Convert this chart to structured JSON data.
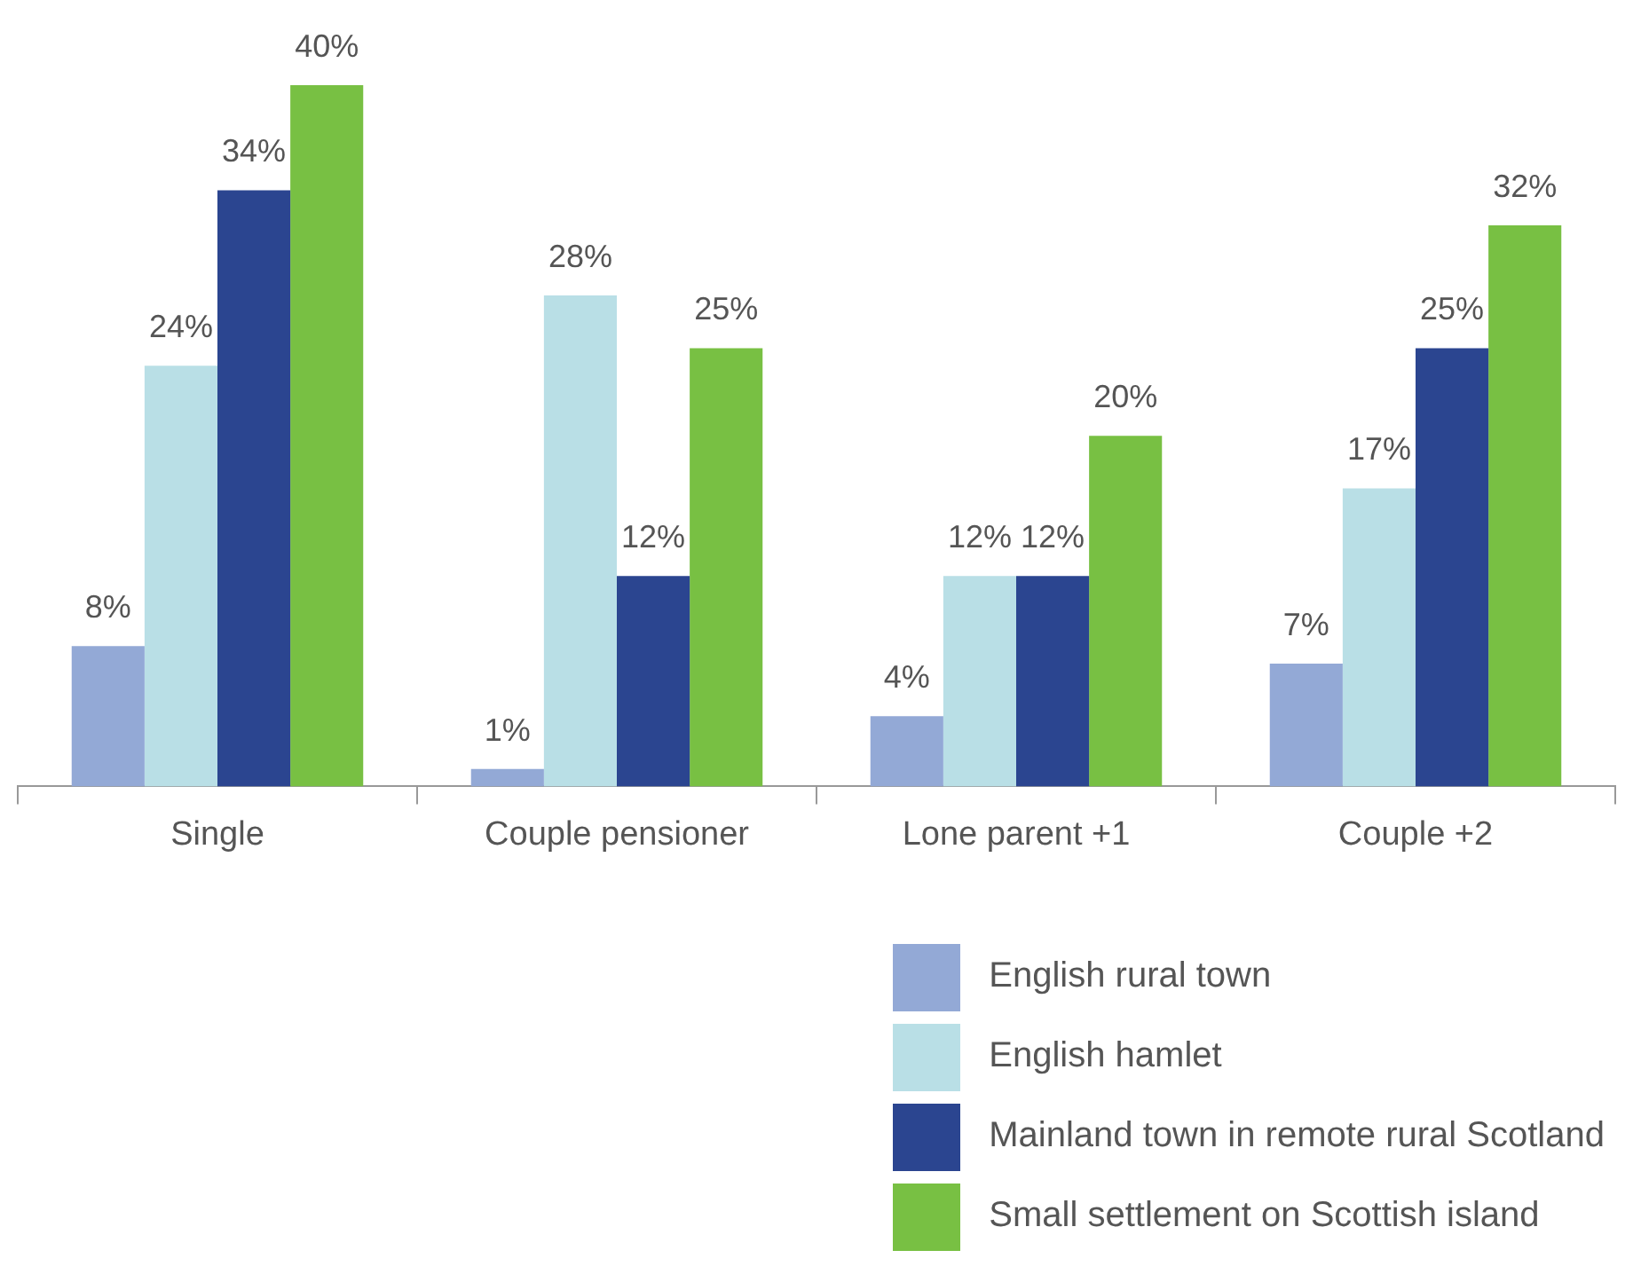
{
  "chart_data": {
    "type": "bar",
    "categories": [
      "Single",
      "Couple pensioner",
      "Lone parent +1",
      "Couple +2"
    ],
    "series": [
      {
        "name": "English rural town",
        "color": "#93a9d6",
        "values": [
          8,
          1,
          4,
          7
        ],
        "value_labels": [
          "8%",
          "1%",
          "4%",
          "7%"
        ]
      },
      {
        "name": "English hamlet",
        "color": "#b9dfe6",
        "values": [
          24,
          28,
          12,
          17
        ],
        "value_labels": [
          "24%",
          "28%",
          "12%",
          "17%"
        ]
      },
      {
        "name": "Mainland town in remote rural Scotland",
        "color": "#2b4590",
        "values": [
          34,
          12,
          12,
          25
        ],
        "value_labels": [
          "34%",
          "12%",
          "12%",
          "25%"
        ]
      },
      {
        "name": "Small settlement on Scottish island",
        "color": "#78c043",
        "values": [
          40,
          25,
          20,
          32
        ],
        "value_labels": [
          "40%",
          "25%",
          "20%",
          "32%"
        ]
      }
    ],
    "grid": false,
    "legend": "bottom right"
  }
}
